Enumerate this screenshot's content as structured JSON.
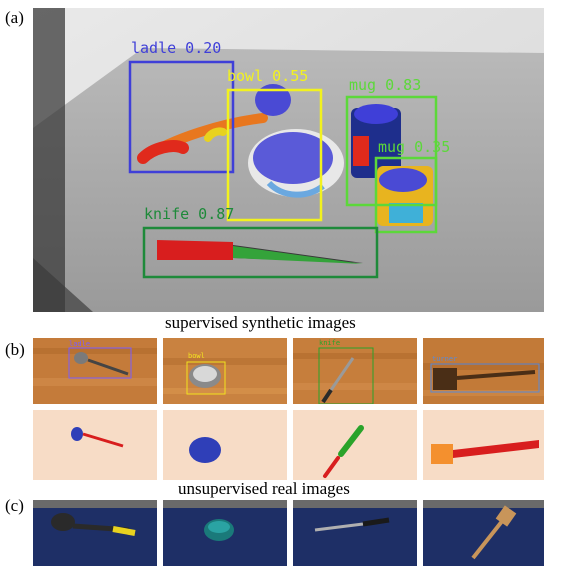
{
  "panels": {
    "a": {
      "label": "(a)"
    },
    "b": {
      "label": "(b)"
    },
    "c": {
      "label": "(c)"
    }
  },
  "captions": {
    "supervised": "supervised synthetic images",
    "unsupervised": "unsupervised real images"
  },
  "detections_main": [
    {
      "label": "ladle 0.20",
      "color": "#3f3fd8"
    },
    {
      "label": "bowl 0.55",
      "color": "#f2f21e"
    },
    {
      "label": "mug 0.83",
      "color": "#5cd83a"
    },
    {
      "label": "mug 0.35",
      "color": "#5cd83a"
    },
    {
      "label": "knife 0.87",
      "color": "#1e8a3a"
    }
  ],
  "synthetic_tiles": [
    {
      "label": "ladle"
    },
    {
      "label": "bowl"
    },
    {
      "label": "knife"
    },
    {
      "label": "turner"
    }
  ],
  "mask_colors": {
    "background": "#f7dcc6",
    "blue": "#2f3fb8",
    "red": "#d81e1e",
    "green": "#2aa32a",
    "orange": "#f4902e"
  }
}
